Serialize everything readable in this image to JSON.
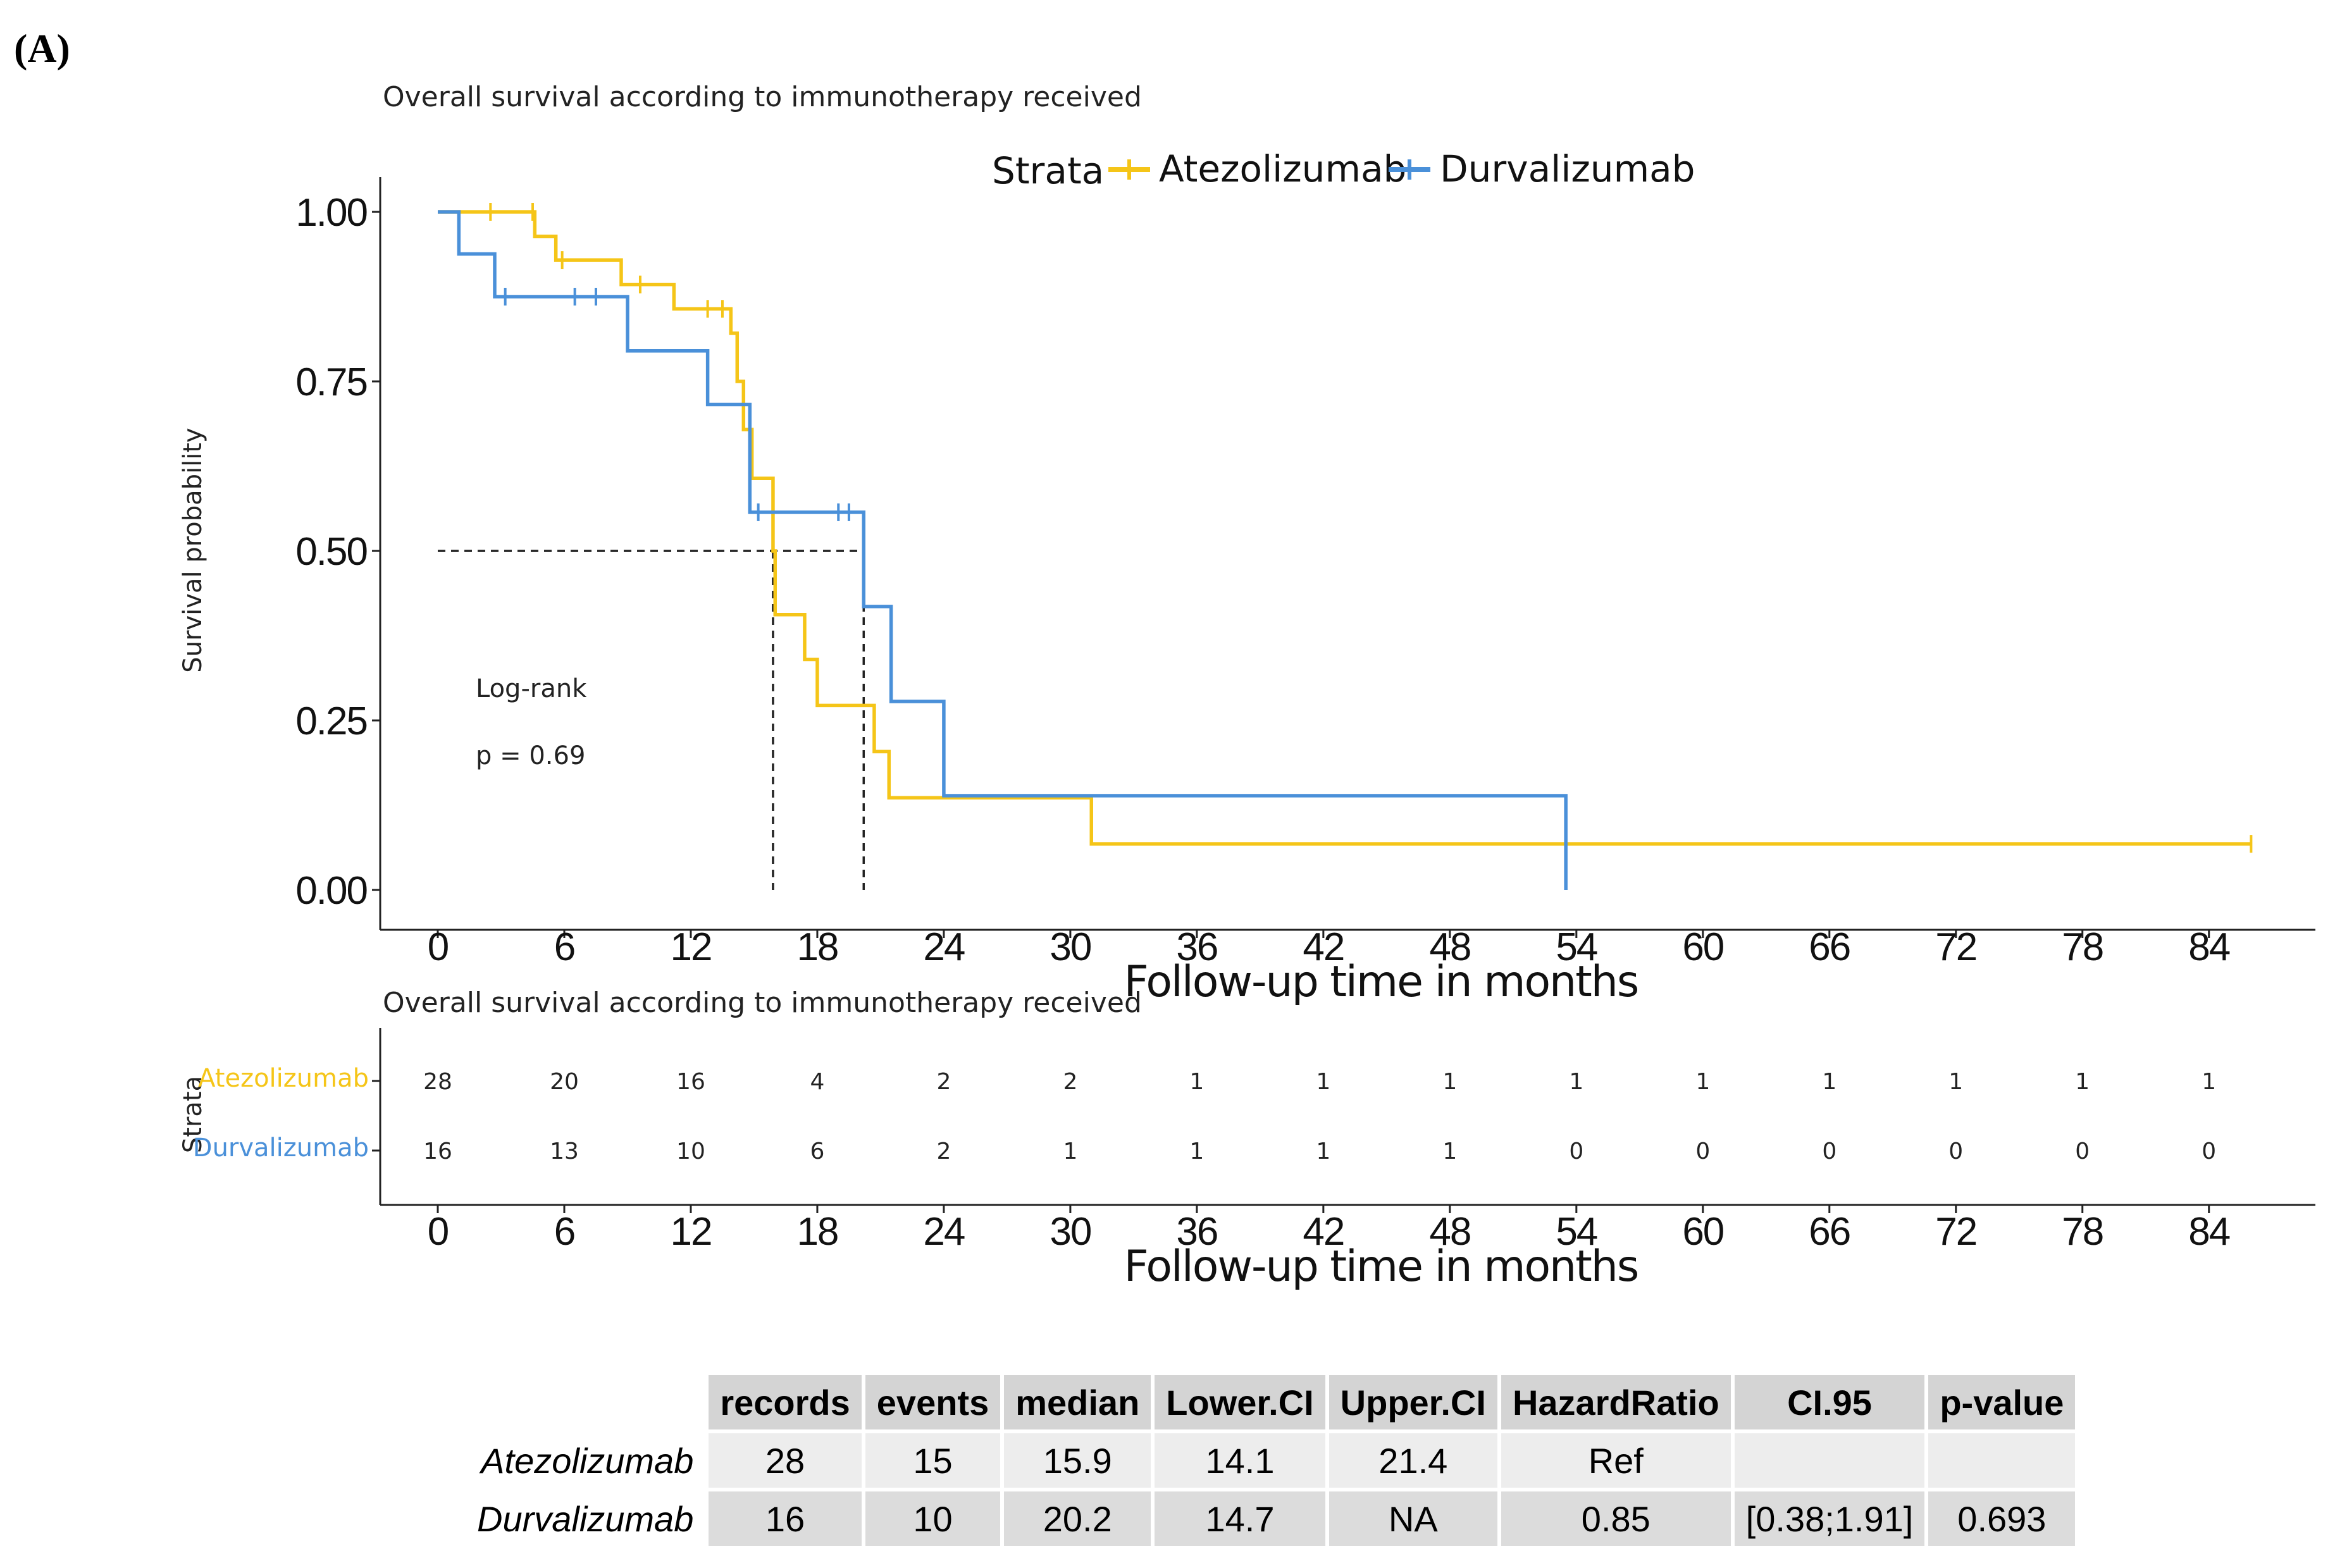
{
  "panel_label": "(A)",
  "chart_data": [
    {
      "type": "line",
      "subtype": "kaplan-meier",
      "title": "Overall survival according to immunotherapy received",
      "xlabel": "Follow-up time in months",
      "ylabel": "Survival probability",
      "xlim": [
        0,
        86
      ],
      "ylim": [
        0,
        1
      ],
      "xticks": [
        0,
        6,
        12,
        18,
        24,
        30,
        36,
        42,
        48,
        54,
        60,
        66,
        72,
        78,
        84
      ],
      "yticks": [
        "0.00",
        "0.25",
        "0.50",
        "0.75",
        "1.00"
      ],
      "legend_title": "Strata",
      "legend_position": "top",
      "annotation": {
        "line1": "Log-rank",
        "line2": "p = 0.69"
      },
      "series": [
        {
          "name": "Atezolizumab",
          "color": "#f5c518",
          "steps": [
            [
              0,
              1.0
            ],
            [
              4.6,
              0.964
            ],
            [
              5.6,
              0.929
            ],
            [
              8.7,
              0.893
            ],
            [
              11.2,
              0.857
            ],
            [
              13.9,
              0.821
            ],
            [
              14.2,
              0.75
            ],
            [
              14.5,
              0.679
            ],
            [
              14.9,
              0.607
            ],
            [
              15.9,
              0.5
            ],
            [
              16.0,
              0.406
            ],
            [
              17.4,
              0.34
            ],
            [
              18.0,
              0.272
            ],
            [
              20.7,
              0.204
            ],
            [
              21.4,
              0.136
            ],
            [
              31.0,
              0.068
            ],
            [
              86.0,
              0.068
            ]
          ],
          "censor_times": [
            2.5,
            4.5,
            5.9,
            9.6,
            12.8,
            13.5,
            86.0
          ],
          "median": 15.9
        },
        {
          "name": "Durvalizumab",
          "color": "#4a90d9",
          "steps": [
            [
              0,
              1.0
            ],
            [
              1.0,
              0.938
            ],
            [
              2.7,
              0.875
            ],
            [
              9.0,
              0.795
            ],
            [
              12.8,
              0.716
            ],
            [
              14.8,
              0.557
            ],
            [
              20.2,
              0.418
            ],
            [
              21.5,
              0.278
            ],
            [
              24.0,
              0.139
            ],
            [
              53.5,
              0.0
            ]
          ],
          "censor_times": [
            3.2,
            6.5,
            7.5,
            15.2,
            19.0,
            19.5
          ],
          "median": 20.2
        }
      ]
    },
    {
      "type": "table",
      "title": "Overall survival according to immunotherapy received",
      "xlabel": "Follow-up time in months",
      "ylabel": "Strata",
      "xticks": [
        0,
        6,
        12,
        18,
        24,
        30,
        36,
        42,
        48,
        54,
        60,
        66,
        72,
        78,
        84
      ],
      "rows": [
        {
          "name": "Atezolizumab",
          "color": "#f5c518",
          "values": [
            28,
            20,
            16,
            4,
            2,
            2,
            1,
            1,
            1,
            1,
            1,
            1,
            1,
            1,
            1
          ]
        },
        {
          "name": "Durvalizumab",
          "color": "#4a90d9",
          "values": [
            16,
            13,
            10,
            6,
            2,
            1,
            1,
            1,
            1,
            0,
            0,
            0,
            0,
            0,
            0
          ]
        }
      ]
    },
    {
      "type": "table",
      "columns": [
        "records",
        "events",
        "median",
        "Lower.CI",
        "Upper.CI",
        "HazardRatio",
        "CI.95",
        "p-value"
      ],
      "rows": [
        {
          "name": "Atezolizumab",
          "cells": [
            "28",
            "15",
            "15.9",
            "14.1",
            "21.4",
            "Ref",
            "",
            ""
          ]
        },
        {
          "name": "Durvalizumab",
          "cells": [
            "16",
            "10",
            "20.2",
            "14.7",
            "NA",
            "0.85",
            "[0.38;1.91]",
            "0.693"
          ]
        }
      ]
    }
  ]
}
